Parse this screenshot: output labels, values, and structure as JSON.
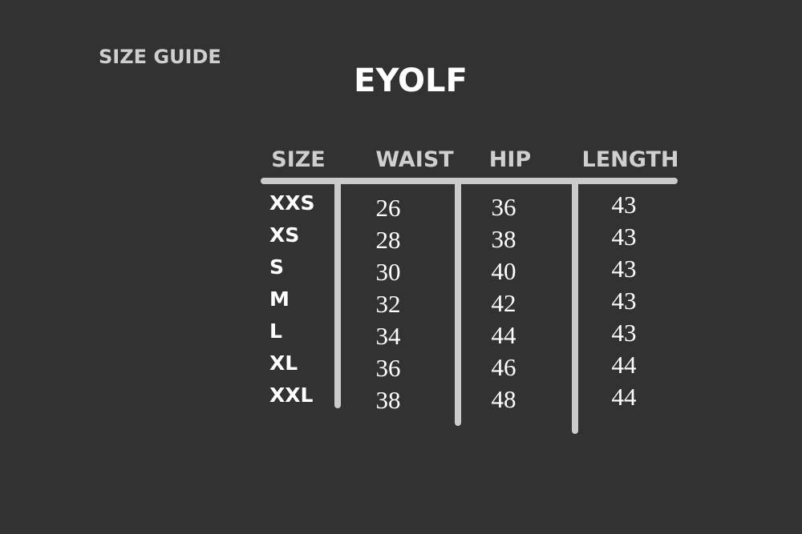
{
  "title": "SIZE GUIDE",
  "brand": "EYOLF",
  "colors": {
    "background": "#323232",
    "header_text": "#cfcfcf",
    "lines": "#cbcbcb",
    "values": "#ffffff"
  },
  "table": {
    "headers": [
      "SIZE",
      "WAIST",
      "HIP",
      "LENGTH"
    ],
    "rows": [
      {
        "size": "XXS",
        "waist": "26",
        "hip": "36",
        "length": "43"
      },
      {
        "size": "XS",
        "waist": "28",
        "hip": "38",
        "length": "43"
      },
      {
        "size": "S",
        "waist": "30",
        "hip": "40",
        "length": "43"
      },
      {
        "size": "M",
        "waist": "32",
        "hip": "42",
        "length": "43"
      },
      {
        "size": "L",
        "waist": "34",
        "hip": "44",
        "length": "43"
      },
      {
        "size": "XL",
        "waist": "36",
        "hip": "46",
        "length": "44"
      },
      {
        "size": "XXL",
        "waist": "38",
        "hip": "48",
        "length": "44"
      }
    ]
  }
}
